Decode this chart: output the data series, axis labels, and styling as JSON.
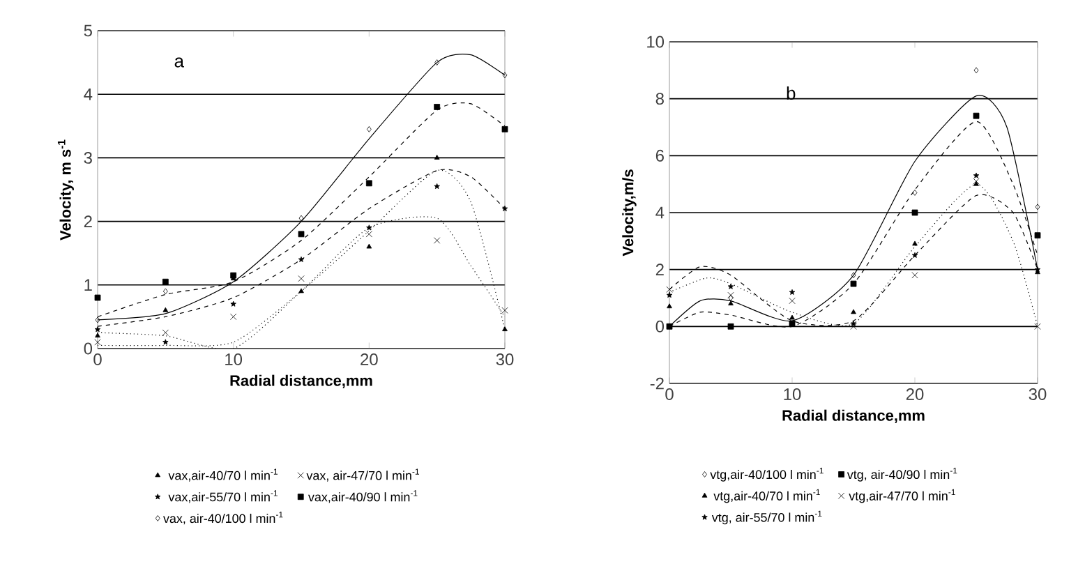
{
  "chart_data": [
    {
      "type": "scatter",
      "xlabel": "Radial distance,mm",
      "ylabel": "Velocity, m s$^{-1}$",
      "annotations": [
        "a"
      ],
      "xlim": [
        0,
        30
      ],
      "ylim": [
        0,
        5
      ],
      "xticks": [
        0,
        10,
        20,
        30
      ],
      "yticks": [
        0,
        1,
        2,
        3,
        4,
        5
      ],
      "grid": "y",
      "legend": "bottom",
      "x": [
        0,
        5,
        10,
        15,
        20,
        25,
        30
      ],
      "series": [
        {
          "name": "vax,air-40/70 l min$^{-1}$",
          "marker": "triangle",
          "color": "#000000",
          "values": [
            0.2,
            0.6,
            1.1,
            0.9,
            1.6,
            3.0,
            0.3
          ]
        },
        {
          "name": "vax, air-47/70 l min$^{-1}$",
          "marker": "cross",
          "color": "#000000",
          "values": [
            0.1,
            0.25,
            0.5,
            1.1,
            1.8,
            1.7,
            0.6
          ]
        },
        {
          "name": "vax,air-55/70 l min$^{-1}$",
          "marker": "star",
          "color": "#000000",
          "values": [
            0.3,
            0.1,
            0.7,
            1.4,
            1.9,
            2.55,
            2.2
          ]
        },
        {
          "name": "vax,air-40/90 l min$^{-1}$",
          "marker": "square",
          "color": "#000000",
          "values": [
            0.8,
            1.05,
            1.15,
            1.8,
            2.6,
            3.8,
            3.45
          ]
        },
        {
          "name": "vax, air-40/100 l min$^{-1}$",
          "marker": "diamond",
          "color": "#000000",
          "values": [
            0.45,
            0.9,
            null,
            2.05,
            3.45,
            4.5,
            4.3
          ]
        },
        {
          "type": "line",
          "line_style": "dotted",
          "color": "#000000",
          "x": [
            0,
            5,
            10,
            15,
            20,
            25,
            27.5,
            30
          ],
          "values": [
            0.05,
            0.05,
            0.1,
            0.9,
            1.85,
            2.8,
            2.3,
            0.3
          ]
        },
        {
          "type": "line",
          "line_style": "dotted",
          "color": "#000000",
          "x": [
            0,
            5,
            10,
            15,
            20,
            25,
            27.5,
            30
          ],
          "values": [
            0.25,
            0.2,
            0.0,
            0.9,
            1.9,
            2.05,
            1.3,
            0.5
          ]
        },
        {
          "type": "line",
          "line_style": "dashed",
          "color": "#000000",
          "x": [
            0,
            5,
            10,
            15,
            20,
            25,
            27.5,
            30
          ],
          "values": [
            0.35,
            0.5,
            0.8,
            1.4,
            2.2,
            2.8,
            2.7,
            2.2
          ]
        },
        {
          "type": "line",
          "line_style": "dashed",
          "color": "#000000",
          "x": [
            0,
            5,
            10,
            15,
            20,
            25,
            27.5,
            30
          ],
          "values": [
            0.5,
            0.85,
            1.05,
            1.7,
            2.7,
            3.75,
            3.85,
            3.5
          ]
        },
        {
          "type": "line",
          "line_style": "solid",
          "color": "#000000",
          "x": [
            0,
            5,
            10,
            15,
            20,
            25,
            27.5,
            30
          ],
          "values": [
            0.45,
            0.55,
            1.05,
            2.0,
            3.3,
            4.5,
            4.62,
            4.3
          ]
        }
      ]
    },
    {
      "type": "scatter",
      "xlabel": "Radial distance,mm",
      "ylabel": "Velocity,m/s",
      "annotations": [
        "b"
      ],
      "xlim": [
        0,
        30
      ],
      "ylim": [
        -2,
        10
      ],
      "xticks": [
        0,
        10,
        20,
        30
      ],
      "yticks": [
        -2,
        0,
        2,
        4,
        6,
        8,
        10
      ],
      "grid": "y",
      "legend": "bottom",
      "x": [
        0,
        5,
        10,
        15,
        20,
        25,
        30
      ],
      "series": [
        {
          "name": "vtg,air-40/100 l min$^{-1}$",
          "marker": "diamond",
          "color": "#000000",
          "values": [
            0.0,
            1.0,
            null,
            1.8,
            4.7,
            9.0,
            4.2
          ]
        },
        {
          "name": "vtg, air-40/90 l min$^{-1}$",
          "marker": "square",
          "color": "#000000",
          "values": [
            0.0,
            0.0,
            0.1,
            1.5,
            4.0,
            7.4,
            3.2
          ]
        },
        {
          "name": "vtg,air-40/70 l min$^{-1}$",
          "marker": "triangle",
          "color": "#000000",
          "values": [
            0.7,
            0.8,
            0.3,
            0.5,
            2.9,
            5.0,
            1.9
          ]
        },
        {
          "name": "vtg,air-47/70 l min$^{-1}$",
          "marker": "cross",
          "color": "#000000",
          "values": [
            1.3,
            1.1,
            0.9,
            0.0,
            1.8,
            5.1,
            0.0
          ]
        },
        {
          "name": "vtg, air-55/70 l min$^{-1}$",
          "marker": "star",
          "color": "#000000",
          "values": [
            1.1,
            1.4,
            1.2,
            0.1,
            2.5,
            5.3,
            2.0
          ]
        },
        {
          "type": "line",
          "line_style": "solid",
          "color": "#000000",
          "x": [
            0,
            2.5,
            5,
            10,
            15,
            20,
            25,
            27.5,
            30
          ],
          "values": [
            0.0,
            0.9,
            0.9,
            0.2,
            1.8,
            5.8,
            8.1,
            7.0,
            2.0
          ]
        },
        {
          "type": "line",
          "line_style": "dashed",
          "color": "#000000",
          "x": [
            0,
            2.5,
            5,
            10,
            15,
            20,
            25,
            28,
            30
          ],
          "values": [
            0.0,
            0.5,
            0.4,
            0.0,
            1.5,
            4.8,
            7.2,
            5.0,
            2.5
          ]
        },
        {
          "type": "line",
          "line_style": "dashed",
          "color": "#000000",
          "x": [
            0,
            2.5,
            5,
            10,
            15,
            20,
            25,
            28,
            30
          ],
          "values": [
            1.3,
            2.1,
            1.8,
            0.2,
            0.2,
            2.5,
            4.6,
            4.0,
            2.0
          ]
        },
        {
          "type": "line",
          "line_style": "dotted",
          "color": "#000000",
          "x": [
            0,
            3,
            5,
            10,
            15,
            20,
            25,
            28,
            30
          ],
          "values": [
            1.2,
            1.7,
            1.5,
            0.5,
            0.1,
            2.8,
            5.0,
            3.0,
            0.0
          ]
        }
      ]
    }
  ]
}
